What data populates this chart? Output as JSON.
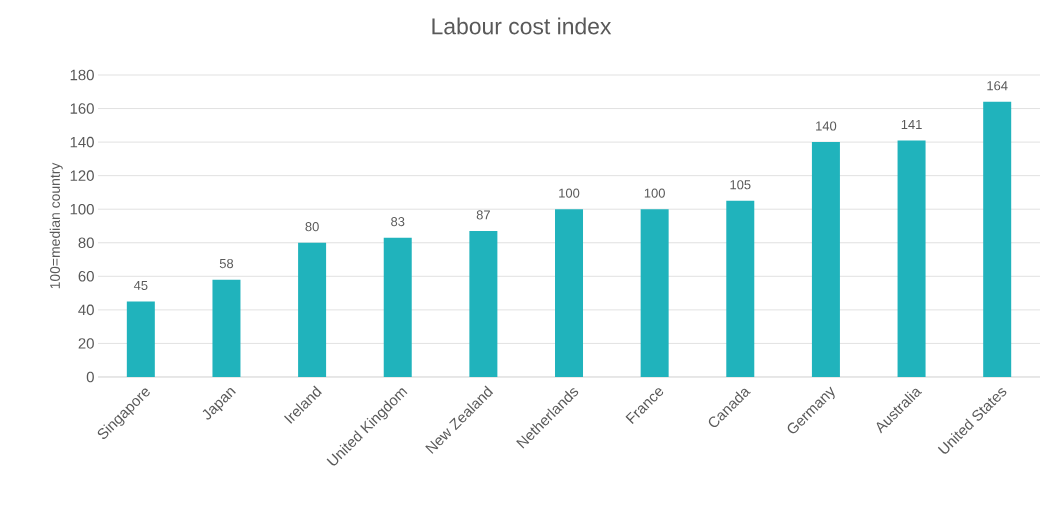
{
  "chart_data": {
    "type": "bar",
    "title": "Labour cost index",
    "ylabel": "100=median country",
    "categories": [
      "Singapore",
      "Japan",
      "Ireland",
      "United Kingdom",
      "New Zealand",
      "Netherlands",
      "France",
      "Canada",
      "Germany",
      "Australia",
      "United States"
    ],
    "values": [
      45,
      58,
      80,
      83,
      87,
      100,
      100,
      105,
      140,
      141,
      164
    ],
    "color": "#20b3bc",
    "ylim": [
      0,
      180
    ],
    "yticks": [
      0,
      20,
      40,
      60,
      80,
      100,
      120,
      140,
      160,
      180
    ],
    "grid": "y",
    "data_labels": true
  }
}
